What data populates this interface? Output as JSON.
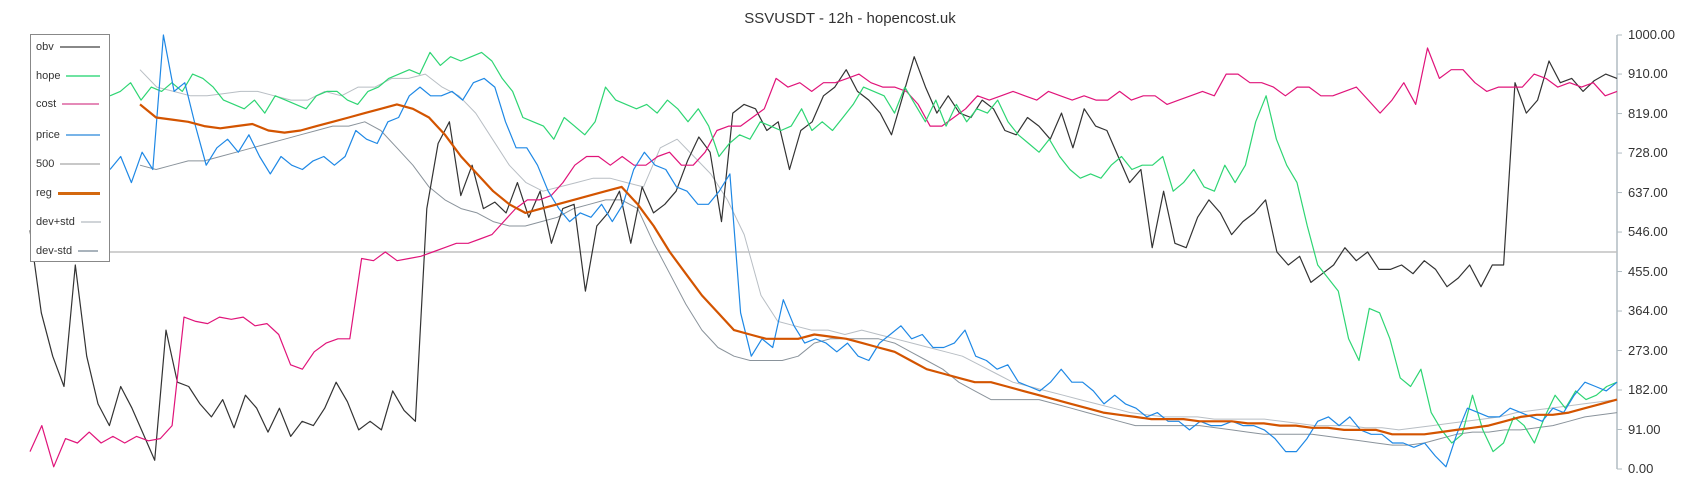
{
  "chart_data": {
    "type": "line",
    "title": "SSVUSDT - 12h - hopencost.uk",
    "xlabel": "",
    "ylabel": "",
    "ylim": [
      0,
      1000
    ],
    "yticks": [
      "1000.00",
      "910.00",
      "819.00",
      "728.00",
      "637.00",
      "546.00",
      "455.00",
      "364.00",
      "273.00",
      "182.00",
      "91.00",
      "0.00"
    ],
    "hline": 500,
    "grid": false,
    "legend_position": "upper-left",
    "legend": [
      {
        "name": "obv",
        "color": "#888888"
      },
      {
        "name": "hope",
        "color": "#6fe3a2"
      },
      {
        "name": "cost",
        "color": "#e58ab8"
      },
      {
        "name": "price",
        "color": "#78b4e8"
      },
      {
        "name": "500",
        "color": "#c8c8c8"
      },
      {
        "name": "reg",
        "color": "#d4680f"
      },
      {
        "name": "dev+std",
        "color": "#d0d4d8"
      },
      {
        "name": "dev-std",
        "color": "#a9b3bc"
      }
    ],
    "series": [
      {
        "name": "obv",
        "color": "#333333",
        "width": 1.2,
        "values": [
          550,
          360,
          260,
          190,
          470,
          260,
          150,
          100,
          190,
          140,
          80,
          20,
          320,
          200,
          190,
          150,
          120,
          160,
          95,
          170,
          140,
          85,
          140,
          75,
          110,
          100,
          140,
          200,
          155,
          90,
          110,
          90,
          180,
          135,
          110,
          600,
          750,
          800,
          630,
          700,
          600,
          615,
          590,
          660,
          580,
          640,
          520,
          600,
          610,
          410,
          560,
          590,
          640,
          520,
          650,
          590,
          610,
          640,
          710,
          765,
          730,
          570,
          820,
          840,
          830,
          780,
          800,
          690,
          780,
          800,
          860,
          880,
          920,
          870,
          850,
          820,
          770,
          860,
          950,
          880,
          820,
          860,
          820,
          810,
          850,
          830,
          780,
          770,
          810,
          790,
          760,
          820,
          740,
          830,
          790,
          780,
          720,
          660,
          690,
          510,
          640,
          520,
          510,
          580,
          620,
          590,
          540,
          570,
          590,
          620,
          500,
          470,
          490,
          430,
          450,
          470,
          510,
          480,
          500,
          460,
          460,
          470,
          450,
          480,
          460,
          420,
          440,
          470,
          420,
          470,
          470,
          890,
          820,
          850,
          940,
          890,
          900,
          870,
          895,
          910,
          900
        ]
      },
      {
        "name": "hope",
        "color": "#2ed573",
        "width": 1.2,
        "values": [
          860,
          870,
          890,
          850,
          880,
          870,
          890,
          870,
          910,
          900,
          880,
          850,
          840,
          830,
          850,
          820,
          860,
          850,
          840,
          830,
          860,
          870,
          870,
          850,
          840,
          870,
          880,
          900,
          910,
          920,
          910,
          960,
          930,
          950,
          940,
          950,
          960,
          940,
          900,
          870,
          810,
          800,
          790,
          760,
          810,
          790,
          770,
          800,
          880,
          850,
          840,
          830,
          840,
          820,
          850,
          830,
          800,
          830,
          790,
          720,
          750,
          770,
          760,
          800,
          790,
          780,
          790,
          830,
          780,
          800,
          780,
          810,
          840,
          880,
          870,
          860,
          820,
          880,
          840,
          800,
          850,
          790,
          840,
          800,
          830,
          820,
          850,
          800,
          770,
          750,
          730,
          760,
          720,
          690,
          670,
          680,
          670,
          700,
          720,
          690,
          700,
          700,
          720,
          640,
          660,
          690,
          650,
          640,
          700,
          660,
          700,
          800,
          860,
          760,
          700,
          660,
          560,
          470,
          440,
          410,
          300,
          250,
          370,
          360,
          300,
          210,
          190,
          230,
          130,
          90,
          60,
          80,
          170,
          90,
          40,
          60,
          120,
          100,
          60,
          120,
          170,
          140,
          180,
          160,
          170,
          190,
          200
        ]
      },
      {
        "name": "cost",
        "color": "#e0147a",
        "width": 1.2,
        "values": [
          40,
          100,
          5,
          70,
          60,
          85,
          60,
          75,
          60,
          75,
          65,
          70,
          100,
          350,
          340,
          335,
          350,
          345,
          350,
          330,
          335,
          310,
          240,
          230,
          270,
          290,
          300,
          300,
          485,
          480,
          500,
          480,
          485,
          490,
          500,
          510,
          520,
          520,
          530,
          540,
          570,
          600,
          620,
          620,
          630,
          660,
          700,
          720,
          720,
          700,
          720,
          700,
          700,
          720,
          730,
          700,
          700,
          730,
          780,
          790,
          790,
          810,
          830,
          900,
          880,
          890,
          870,
          890,
          890,
          900,
          910,
          890,
          880,
          880,
          870,
          840,
          790,
          790,
          810,
          830,
          860,
          850,
          860,
          870,
          860,
          850,
          870,
          860,
          850,
          860,
          850,
          850,
          870,
          850,
          860,
          860,
          840,
          850,
          860,
          870,
          860,
          910,
          910,
          890,
          890,
          880,
          860,
          880,
          880,
          860,
          860,
          870,
          880,
          850,
          820,
          850,
          890,
          840,
          970,
          900,
          920,
          920,
          890,
          870,
          880,
          880,
          880,
          910,
          900,
          880,
          890,
          880,
          890,
          860,
          870
        ]
      },
      {
        "name": "price",
        "color": "#1e88e5",
        "width": 1.2,
        "values": [
          690,
          720,
          660,
          730,
          690,
          1000,
          870,
          890,
          790,
          700,
          740,
          760,
          730,
          770,
          720,
          680,
          720,
          700,
          690,
          710,
          720,
          700,
          720,
          780,
          760,
          750,
          800,
          810,
          860,
          880,
          860,
          860,
          870,
          850,
          890,
          900,
          880,
          800,
          740,
          740,
          700,
          640,
          600,
          570,
          590,
          580,
          610,
          570,
          610,
          690,
          730,
          700,
          690,
          650,
          640,
          610,
          610,
          640,
          680,
          360,
          260,
          300,
          280,
          390,
          330,
          290,
          300,
          290,
          270,
          290,
          260,
          250,
          290,
          310,
          330,
          300,
          310,
          280,
          280,
          290,
          320,
          260,
          250,
          230,
          240,
          200,
          190,
          180,
          200,
          230,
          200,
          200,
          180,
          150,
          170,
          150,
          140,
          120,
          130,
          110,
          110,
          90,
          110,
          100,
          100,
          110,
          100,
          100,
          90,
          70,
          40,
          40,
          70,
          110,
          120,
          100,
          120,
          90,
          80,
          80,
          60,
          60,
          50,
          60,
          30,
          5,
          80,
          140,
          130,
          120,
          120,
          140,
          130,
          120,
          110,
          140,
          130,
          170,
          200,
          190,
          180,
          200
        ]
      },
      {
        "name": "500",
        "color": "#c0c0c0",
        "width": 1.5,
        "values": [
          500,
          500
        ]
      },
      {
        "name": "reg",
        "color": "#d35400",
        "width": 2.2,
        "values": [
          840,
          810,
          805,
          800,
          790,
          785,
          790,
          795,
          780,
          775,
          780,
          790,
          800,
          810,
          820,
          830,
          840,
          830,
          810,
          770,
          720,
          680,
          640,
          610,
          590,
          600,
          610,
          620,
          630,
          640,
          650,
          610,
          560,
          500,
          450,
          400,
          360,
          320,
          310,
          300,
          300,
          300,
          310,
          305,
          300,
          290,
          280,
          270,
          250,
          230,
          220,
          210,
          200,
          200,
          190,
          180,
          170,
          160,
          150,
          140,
          130,
          125,
          120,
          115,
          115,
          115,
          110,
          110,
          110,
          105,
          105,
          100,
          100,
          95,
          95,
          90,
          90,
          90,
          80,
          80,
          80,
          85,
          90,
          95,
          100,
          110,
          120,
          125,
          125,
          130,
          140,
          150,
          160
        ]
      },
      {
        "name": "dev+std",
        "color": "#b8bec4",
        "width": 1.0,
        "values": [
          920,
          880,
          870,
          860,
          860,
          865,
          870,
          870,
          860,
          850,
          850,
          870,
          860,
          880,
          880,
          900,
          900,
          910,
          880,
          860,
          820,
          760,
          700,
          660,
          640,
          650,
          660,
          670,
          670,
          660,
          650,
          740,
          760,
          720,
          680,
          620,
          540,
          400,
          340,
          330,
          320,
          320,
          310,
          320,
          310,
          300,
          290,
          280,
          270,
          260,
          240,
          220,
          200,
          190,
          180,
          170,
          160,
          150,
          140,
          130,
          125,
          120,
          120,
          120,
          115,
          115,
          115,
          115,
          110,
          105,
          100,
          100,
          100,
          95,
          95,
          90,
          95,
          100,
          105,
          110,
          115,
          120,
          130,
          135,
          140,
          145,
          150,
          155,
          160
        ]
      },
      {
        "name": "dev-std",
        "color": "#8a939b",
        "width": 1.0,
        "values": [
          700,
          690,
          700,
          710,
          710,
          720,
          730,
          740,
          750,
          760,
          770,
          780,
          790,
          790,
          800,
          780,
          740,
          700,
          650,
          620,
          600,
          590,
          570,
          560,
          560,
          570,
          580,
          600,
          610,
          620,
          620,
          600,
          520,
          450,
          380,
          320,
          280,
          260,
          250,
          250,
          250,
          260,
          290,
          300,
          300,
          300,
          300,
          290,
          270,
          250,
          230,
          200,
          180,
          160,
          160,
          160,
          160,
          150,
          140,
          130,
          120,
          110,
          100,
          100,
          100,
          100,
          100,
          95,
          90,
          85,
          80,
          80,
          80,
          80,
          75,
          70,
          65,
          60,
          55,
          55,
          60,
          70,
          80,
          85,
          85,
          90,
          90,
          95,
          100,
          110,
          120,
          125,
          130
        ]
      }
    ]
  }
}
